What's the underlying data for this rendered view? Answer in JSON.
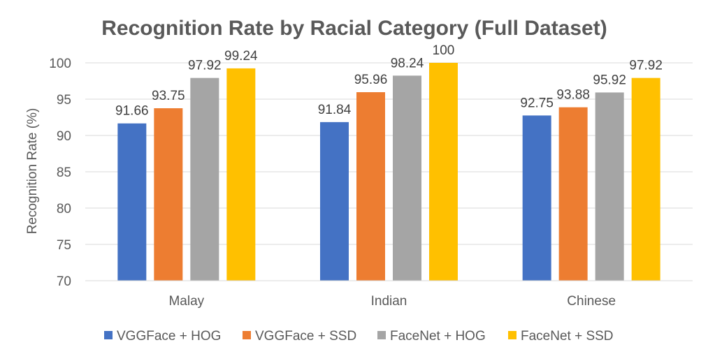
{
  "chart_data": {
    "type": "bar",
    "title": "Recognition Rate by Racial Category (Full Dataset)",
    "xlabel": "",
    "ylabel": "Recognition Rate (%)",
    "ylim": [
      70,
      100
    ],
    "yticks": [
      70,
      75,
      80,
      85,
      90,
      95,
      100
    ],
    "grid": true,
    "legend_position": "bottom",
    "categories": [
      "Malay",
      "Indian",
      "Chinese"
    ],
    "series": [
      {
        "name": "VGGFace + HOG",
        "color": "#4472C4",
        "values": [
          91.66,
          91.84,
          92.75
        ]
      },
      {
        "name": "VGGFace + SSD",
        "color": "#ED7D31",
        "values": [
          93.75,
          95.96,
          93.88
        ]
      },
      {
        "name": "FaceNet + HOG",
        "color": "#A5A5A5",
        "values": [
          97.92,
          98.24,
          95.92
        ]
      },
      {
        "name": "FaceNet + SSD",
        "color": "#FFC000",
        "values": [
          99.24,
          100,
          97.92
        ]
      }
    ]
  }
}
